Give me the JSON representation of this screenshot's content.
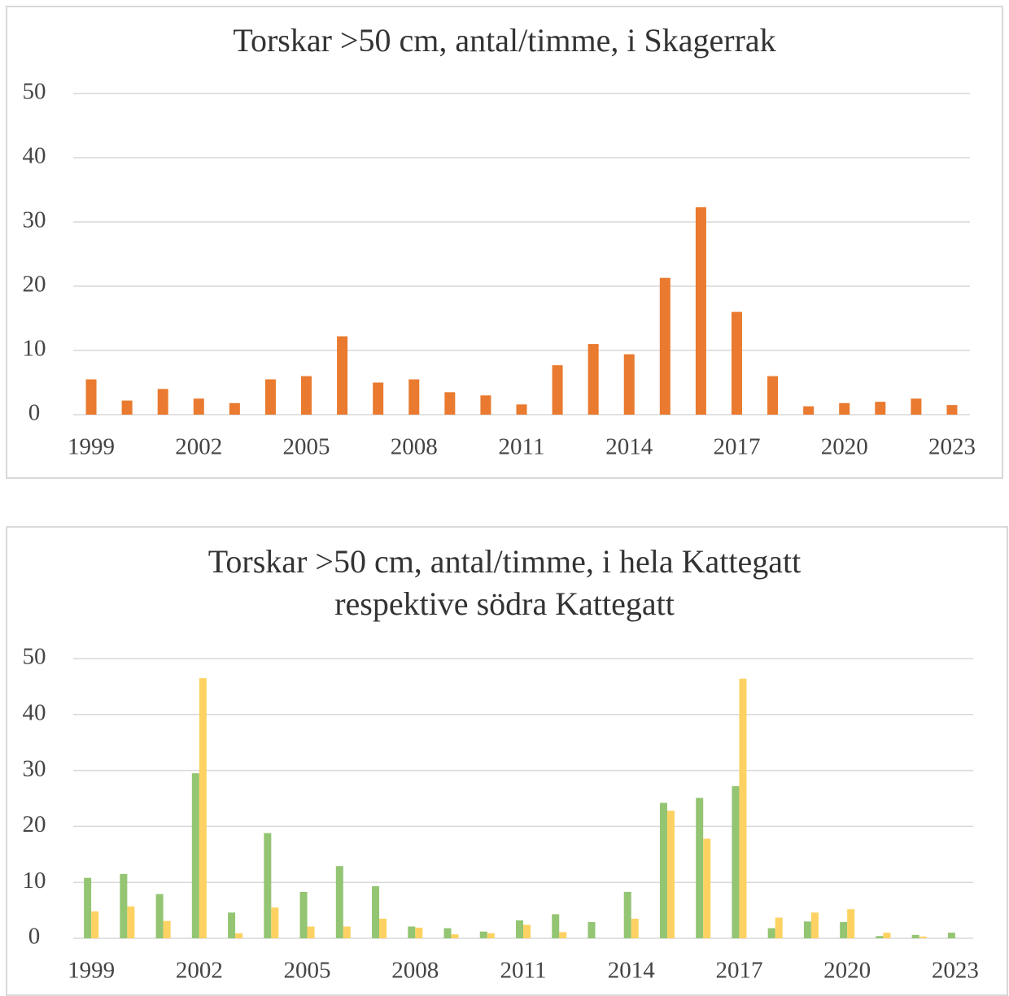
{
  "chart_data": [
    {
      "type": "bar",
      "title": [
        "Torskar >50 cm, antal/timme, i Skagerrak"
      ],
      "categories": [
        "1999",
        null,
        null,
        "2002",
        null,
        null,
        "2005",
        null,
        null,
        "2008",
        null,
        null,
        "2011",
        null,
        null,
        "2014",
        null,
        null,
        "2017",
        null,
        null,
        "2020",
        null,
        null,
        "2023"
      ],
      "series": [
        {
          "color": "#e97a2f",
          "values": [
            5.5,
            2.2,
            4,
            2.5,
            1.8,
            5.5,
            6,
            12.2,
            5,
            5.5,
            3.5,
            3,
            1.6,
            7.7,
            11,
            9.4,
            21.3,
            32.3,
            16,
            6,
            1.3,
            1.8,
            2,
            2.5,
            1.5
          ]
        }
      ],
      "ylim": [
        0,
        50
      ],
      "yticks": [
        0,
        10,
        20,
        30,
        40,
        50
      ],
      "grid": true
    },
    {
      "type": "bar",
      "title": [
        "Torskar >50 cm, antal/timme, i hela Kattegatt",
        "respektive södra Kattegatt"
      ],
      "categories": [
        "1999",
        null,
        null,
        "2002",
        null,
        null,
        "2005",
        null,
        null,
        "2008",
        null,
        null,
        "2011",
        null,
        null,
        "2014",
        null,
        null,
        "2017",
        null,
        null,
        "2020",
        null,
        null,
        "2023"
      ],
      "series": [
        {
          "color": "#93c572",
          "values": [
            10.8,
            11.5,
            7.9,
            29.5,
            4.6,
            18.8,
            8.3,
            12.9,
            9.3,
            2.1,
            1.8,
            1.2,
            3.2,
            4.3,
            2.9,
            8.3,
            24.2,
            25.1,
            27.2,
            1.8,
            3,
            2.9,
            0.4,
            0.6,
            1
          ]
        },
        {
          "color": "#fdd262",
          "values": [
            4.8,
            5.7,
            3.1,
            46.5,
            0.9,
            5.5,
            2.1,
            2.1,
            3.5,
            1.9,
            0.7,
            0.9,
            2.4,
            1.1,
            null,
            3.5,
            22.8,
            17.8,
            46.4,
            3.7,
            4.6,
            5.2,
            1,
            0.3,
            null
          ]
        }
      ],
      "ylim": [
        0,
        50
      ],
      "yticks": [
        0,
        10,
        20,
        30,
        40,
        50
      ],
      "grid": true
    }
  ]
}
